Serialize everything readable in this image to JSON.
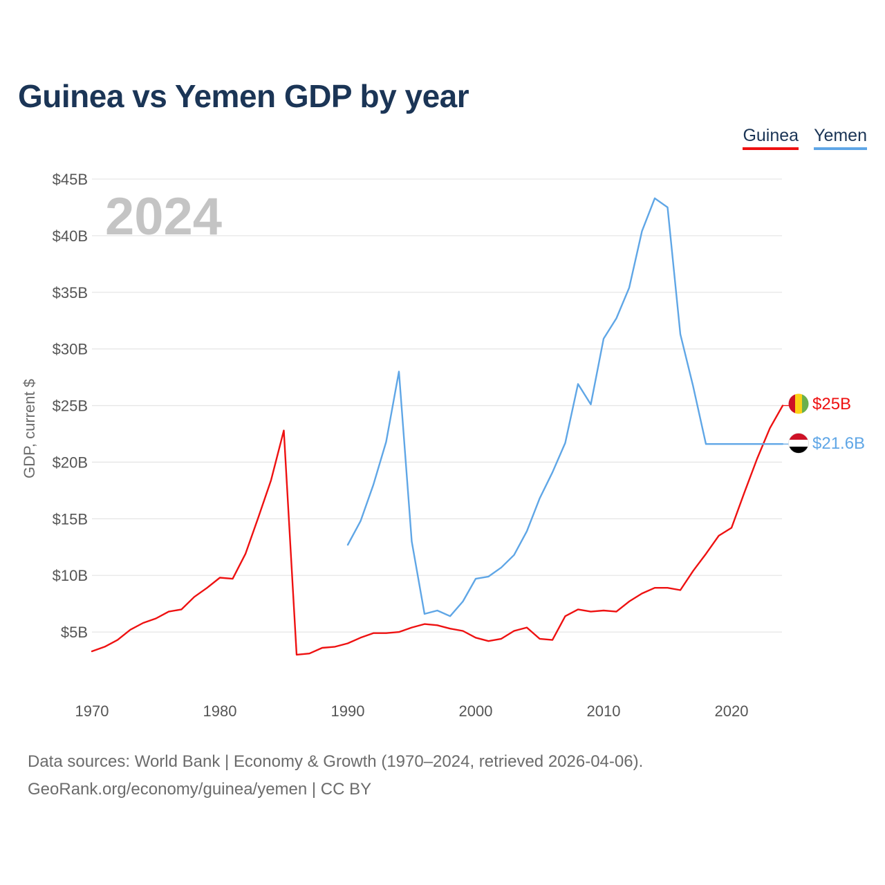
{
  "header": {
    "title": "Guinea vs Yemen GDP by year"
  },
  "legend": {
    "items": [
      {
        "label": "Guinea",
        "color": "#ee1111"
      },
      {
        "label": "Yemen",
        "color": "#5fa6e6"
      }
    ]
  },
  "footer": {
    "line1": "Data sources: World Bank | Economy & Growth (1970–2024, retrieved 2026-04-06).",
    "line2": "GeoRank.org/economy/guinea/yemen | CC BY"
  },
  "chart_data": {
    "type": "line",
    "title": "Guinea vs Yemen GDP by year",
    "xlabel": "",
    "ylabel": "GDP, current $",
    "watermark_year": "2024",
    "xlim": [
      1970,
      2024
    ],
    "ylim": [
      0,
      45
    ],
    "x_ticks": [
      1970,
      1980,
      1990,
      2000,
      2010,
      2020
    ],
    "y_ticks": [
      {
        "value": 5,
        "label": "$5B"
      },
      {
        "value": 10,
        "label": "$10B"
      },
      {
        "value": 15,
        "label": "$15B"
      },
      {
        "value": 20,
        "label": "$20B"
      },
      {
        "value": 25,
        "label": "$25B"
      },
      {
        "value": 30,
        "label": "$30B"
      },
      {
        "value": 35,
        "label": "$35B"
      },
      {
        "value": 40,
        "label": "$40B"
      },
      {
        "value": 45,
        "label": "$45B"
      }
    ],
    "grid": true,
    "legend_position": "top-right",
    "series": [
      {
        "name": "Guinea",
        "color": "#ee1111",
        "flag": "guinea-flag",
        "end_label": "$25B",
        "x": [
          1970,
          1971,
          1972,
          1973,
          1974,
          1975,
          1976,
          1977,
          1978,
          1979,
          1980,
          1981,
          1982,
          1983,
          1984,
          1985,
          1986,
          1987,
          1988,
          1989,
          1990,
          1991,
          1992,
          1993,
          1994,
          1995,
          1996,
          1997,
          1998,
          1999,
          2000,
          2001,
          2002,
          2003,
          2004,
          2005,
          2006,
          2007,
          2008,
          2009,
          2010,
          2011,
          2012,
          2013,
          2014,
          2015,
          2016,
          2017,
          2018,
          2019,
          2020,
          2021,
          2022,
          2023,
          2024
        ],
        "values": [
          3.3,
          3.7,
          4.3,
          5.2,
          5.8,
          6.2,
          6.8,
          7.0,
          8.1,
          8.9,
          9.8,
          9.7,
          11.9,
          15.1,
          18.4,
          22.8,
          3.0,
          3.1,
          3.6,
          3.7,
          4.0,
          4.5,
          4.9,
          4.9,
          5.0,
          5.4,
          5.7,
          5.6,
          5.3,
          5.1,
          4.5,
          4.2,
          4.4,
          5.1,
          5.4,
          4.4,
          4.3,
          6.4,
          7.0,
          6.8,
          6.9,
          6.8,
          7.7,
          8.4,
          8.9,
          8.9,
          8.7,
          10.4,
          11.9,
          13.5,
          14.2,
          17.3,
          20.3,
          23.0,
          25.0
        ]
      },
      {
        "name": "Yemen",
        "color": "#5fa6e6",
        "flag": "yemen-flag",
        "end_label": "$21.6B",
        "x": [
          1990,
          1991,
          1992,
          1993,
          1994,
          1995,
          1996,
          1997,
          1998,
          1999,
          2000,
          2001,
          2002,
          2003,
          2004,
          2005,
          2006,
          2007,
          2008,
          2009,
          2010,
          2011,
          2012,
          2013,
          2014,
          2015,
          2016,
          2017,
          2018,
          2019,
          2020,
          2021,
          2022,
          2023,
          2024
        ],
        "values": [
          12.7,
          14.8,
          18.0,
          21.8,
          28.0,
          13.0,
          6.6,
          6.9,
          6.4,
          7.7,
          9.7,
          9.9,
          10.7,
          11.8,
          13.9,
          16.8,
          19.1,
          21.7,
          26.9,
          25.1,
          30.9,
          32.7,
          35.4,
          40.4,
          43.3,
          42.5,
          31.3,
          26.7,
          21.6,
          21.6,
          21.6,
          21.6,
          21.6,
          21.6,
          21.6
        ]
      }
    ]
  }
}
